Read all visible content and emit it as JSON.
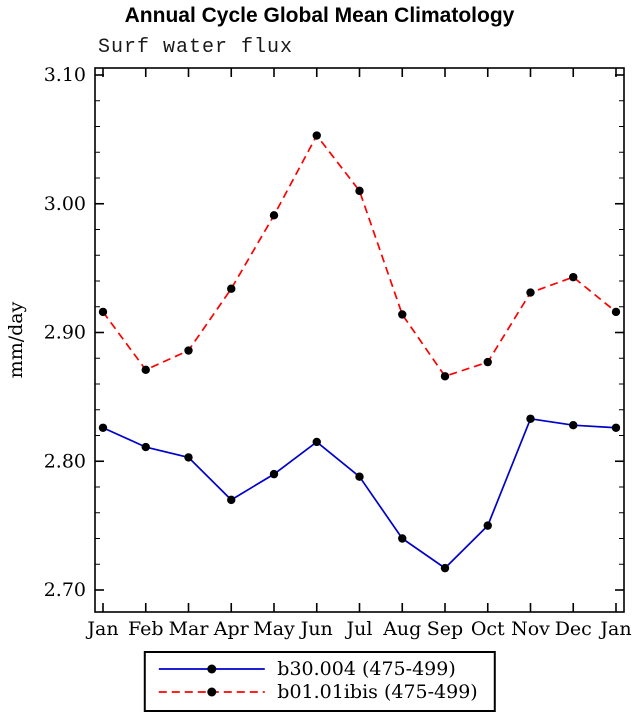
{
  "chart_data": {
    "type": "line",
    "title": "Annual Cycle Global Mean Climatology",
    "subtitle": "Surf water flux",
    "xlabel": "",
    "ylabel": "mm/day",
    "ylim": [
      2.7,
      3.1
    ],
    "y_ticks": [
      2.7,
      2.8,
      2.9,
      3.0,
      3.1
    ],
    "y_minor_step": 0.02,
    "x_labels": [
      "Jan",
      "Feb",
      "Mar",
      "Apr",
      "May",
      "Jun",
      "Jul",
      "Aug",
      "Sep",
      "Oct",
      "Nov",
      "Dec",
      "Jan"
    ],
    "marker": "filled-circle",
    "marker_color": "#000000",
    "grid": false,
    "legend_position": "bottom-center",
    "series": [
      {
        "name": "b30.004 (475-499)",
        "color": "#0000cd",
        "style": "solid",
        "values": [
          2.826,
          2.811,
          2.803,
          2.77,
          2.79,
          2.815,
          2.788,
          2.74,
          2.717,
          2.75,
          2.833,
          2.828,
          2.826
        ]
      },
      {
        "name": "b01.01ibis (475-499)",
        "color": "#ff0000",
        "style": "dashed",
        "values": [
          2.916,
          2.871,
          2.886,
          2.934,
          2.991,
          3.053,
          3.01,
          2.914,
          2.866,
          2.877,
          2.931,
          2.943,
          2.916
        ]
      }
    ]
  }
}
